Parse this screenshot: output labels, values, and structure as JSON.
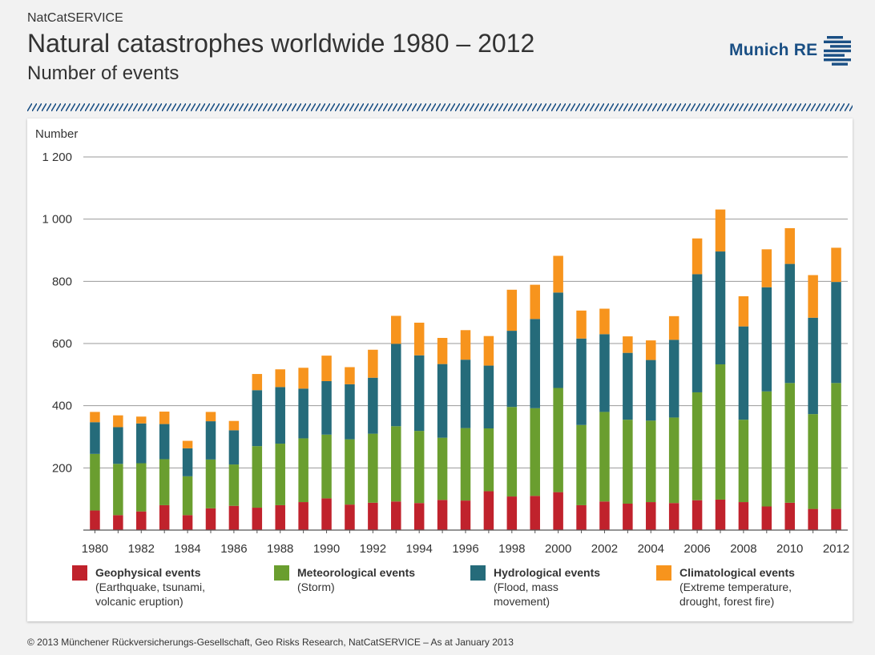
{
  "header": {
    "source": "NatCatSERVICE",
    "title": "Natural catastrophes worldwide 1980 – 2012",
    "subtitle": "Number of events"
  },
  "logo": {
    "text": "Munich RE",
    "color": "#1a4f84"
  },
  "footer": {
    "text": "© 2013 Münchener Rückversicherungs-Gesellschaft, Geo Risks Research, NatCatSERVICE – As at January 2013"
  },
  "colors": {
    "geophysical": "#c0222c",
    "meteorological": "#6a9e2f",
    "hydrological": "#256b7a",
    "climatological": "#f7941d"
  },
  "legend": [
    {
      "key": "geophysical",
      "name": "Geophysical events",
      "desc": "(Earthquake, tsunami,\nvolcanic eruption)"
    },
    {
      "key": "meteorological",
      "name": "Meteorological events",
      "desc": "(Storm)"
    },
    {
      "key": "hydrological",
      "name": "Hydrological events",
      "desc": "(Flood, mass\nmovement)"
    },
    {
      "key": "climatological",
      "name": "Climatological events",
      "desc": "(Extreme temperature,\ndrought, forest fire)"
    }
  ],
  "chart_data": {
    "type": "bar",
    "stacked": true,
    "ylabel": "Number",
    "ylim": [
      0,
      1200
    ],
    "yticks": [
      200,
      400,
      600,
      800,
      1000,
      1200
    ],
    "ytick_labels": [
      "200",
      "400",
      "600",
      "800",
      "1 000",
      "1 200"
    ],
    "grid": true,
    "categories": [
      1980,
      1981,
      1982,
      1983,
      1984,
      1985,
      1986,
      1987,
      1988,
      1989,
      1990,
      1991,
      1992,
      1993,
      1994,
      1995,
      1996,
      1997,
      1998,
      1999,
      2000,
      2001,
      2002,
      2003,
      2004,
      2005,
      2006,
      2007,
      2008,
      2009,
      2010,
      2011,
      2012
    ],
    "xtick_labels": [
      "1980",
      "1982",
      "1984",
      "1986",
      "1988",
      "1990",
      "1992",
      "1994",
      "1996",
      "1998",
      "2000",
      "2002",
      "2004",
      "2006",
      "2008",
      "2010",
      "2012"
    ],
    "series": [
      {
        "name": "Geophysical events",
        "key": "geophysical",
        "values": [
          63,
          48,
          60,
          80,
          48,
          70,
          78,
          72,
          80,
          90,
          102,
          82,
          88,
          92,
          87,
          97,
          95,
          125,
          108,
          110,
          122,
          80,
          92,
          85,
          90,
          87,
          96,
          98,
          90,
          76,
          88,
          68,
          68
        ]
      },
      {
        "name": "Meteorological events",
        "key": "meteorological",
        "values": [
          182,
          165,
          155,
          148,
          125,
          157,
          133,
          198,
          198,
          205,
          205,
          210,
          222,
          242,
          232,
          200,
          233,
          202,
          288,
          282,
          335,
          258,
          288,
          270,
          262,
          275,
          347,
          435,
          265,
          370,
          385,
          305,
          405
        ]
      },
      {
        "name": "Hydrological events",
        "key": "hydrological",
        "values": [
          102,
          118,
          128,
          113,
          90,
          123,
          110,
          180,
          182,
          160,
          172,
          177,
          180,
          265,
          243,
          237,
          220,
          202,
          245,
          287,
          307,
          278,
          250,
          215,
          195,
          250,
          380,
          363,
          300,
          335,
          383,
          310,
          325
        ]
      },
      {
        "name": "Climatological events",
        "key": "climatological",
        "values": [
          33,
          38,
          22,
          40,
          24,
          30,
          30,
          52,
          57,
          67,
          82,
          55,
          90,
          90,
          105,
          84,
          95,
          95,
          132,
          110,
          118,
          90,
          82,
          53,
          63,
          76,
          115,
          135,
          97,
          122,
          115,
          137,
          110
        ]
      }
    ]
  }
}
